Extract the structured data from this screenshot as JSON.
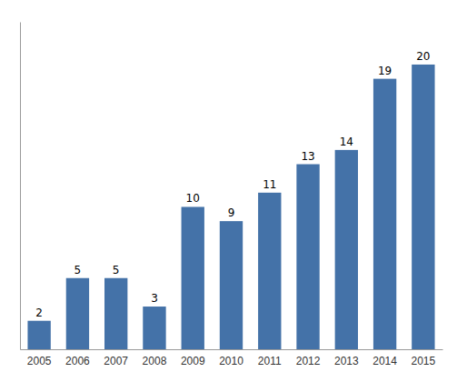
{
  "chart_data": {
    "type": "bar",
    "categories": [
      "2005",
      "2006",
      "2007",
      "2008",
      "2009",
      "2010",
      "2011",
      "2012",
      "2013",
      "2014",
      "2015"
    ],
    "values": [
      2,
      5,
      5,
      3,
      10,
      9,
      11,
      13,
      14,
      19,
      20
    ],
    "color": "#4472a8",
    "ylim": [
      0,
      23
    ],
    "data_labels": true,
    "tick_labels": "x"
  }
}
